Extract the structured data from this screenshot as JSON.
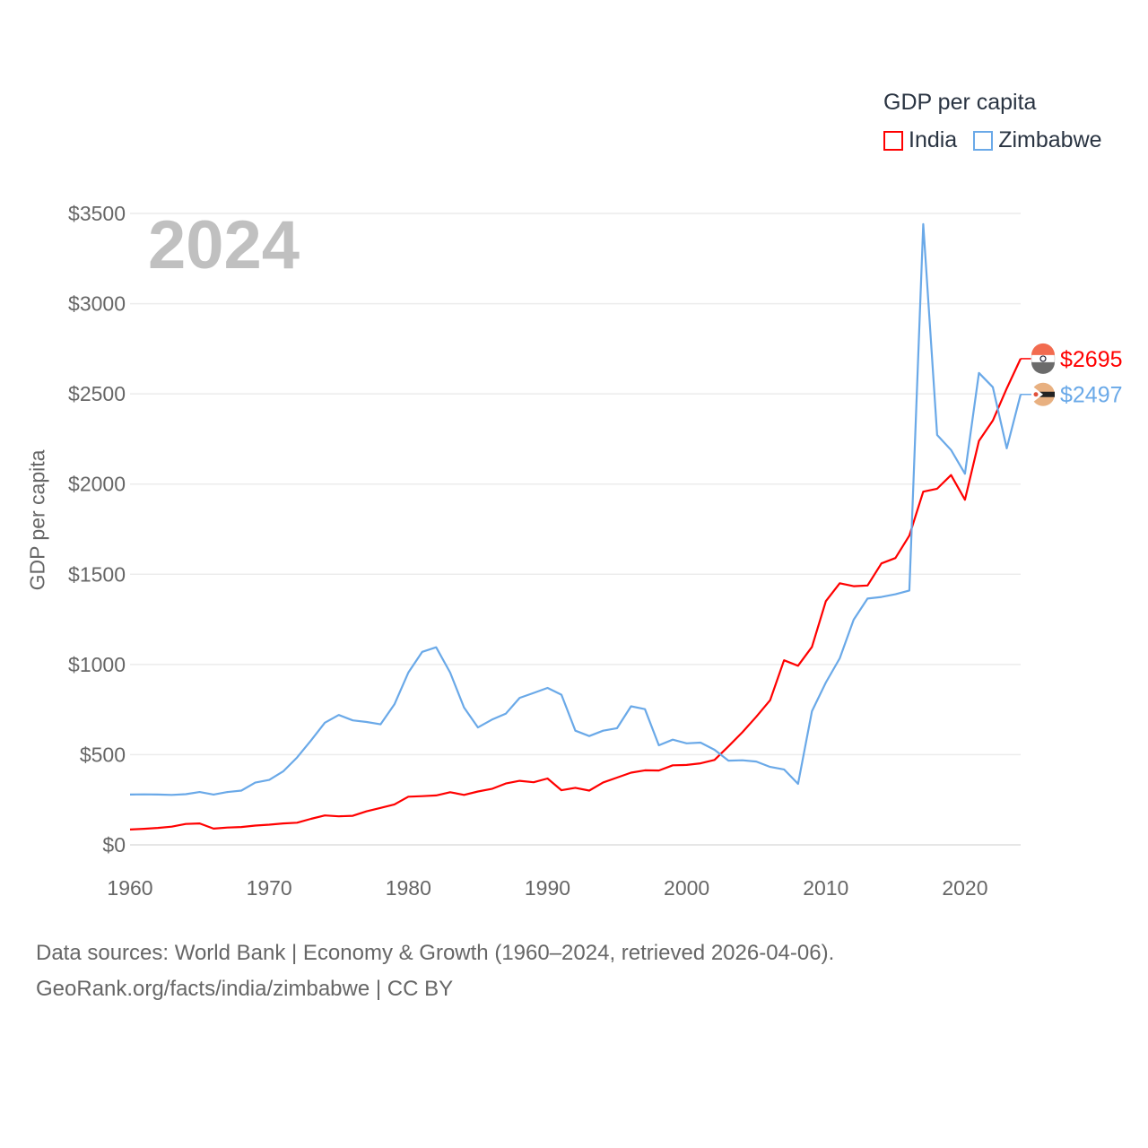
{
  "chart_data": {
    "type": "line",
    "title": "",
    "year_label": "2024",
    "ylabel": "GDP per capita",
    "xlabel": "",
    "xlim": [
      1960,
      2024
    ],
    "ylim": [
      0,
      3500
    ],
    "x_ticks": [
      "1960",
      "1970",
      "1980",
      "1990",
      "2000",
      "2010",
      "2020"
    ],
    "x_tick_values": [
      1960,
      1970,
      1980,
      1990,
      2000,
      2010,
      2020
    ],
    "y_ticks": [
      "$0",
      "$500",
      "$1000",
      "$1500",
      "$2000",
      "$2500",
      "$3000",
      "$3500"
    ],
    "y_tick_values": [
      0,
      500,
      1000,
      1500,
      2000,
      2500,
      3000,
      3500
    ],
    "grid": true,
    "legend": {
      "title": "GDP per capita",
      "placement": "top-right"
    },
    "x_start": 1960,
    "series": [
      {
        "name": "India",
        "color": "#ff0000",
        "end_label": "$2695",
        "flag": "india-flag",
        "values": [
          85,
          89,
          94,
          101,
          116,
          119,
          90,
          96,
          99,
          107,
          112,
          119,
          123,
          144,
          163,
          158,
          161,
          186,
          205,
          224,
          267,
          270,
          274,
          292,
          277,
          296,
          310,
          340,
          355,
          347,
          368,
          303,
          316,
          301,
          346,
          373,
          400,
          413,
          412,
          441,
          443,
          452,
          471,
          546,
          624,
          710,
          802,
          1023,
          993,
          1097,
          1351,
          1450,
          1434,
          1438,
          1560,
          1590,
          1714,
          1958,
          1974,
          2050,
          1913,
          2239,
          2352,
          2530,
          2695
        ]
      },
      {
        "name": "Zimbabwe",
        "color": "#6aa9e8",
        "end_label": "$2497",
        "flag": "zimbabwe-flag",
        "values": [
          279,
          280,
          279,
          277,
          281,
          293,
          279,
          293,
          301,
          345,
          360,
          407,
          484,
          578,
          677,
          720,
          690,
          681,
          668,
          779,
          955,
          1070,
          1095,
          955,
          761,
          651,
          694,
          727,
          815,
          842,
          870,
          832,
          633,
          603,
          633,
          647,
          768,
          752,
          552,
          583,
          563,
          567,
          527,
          467,
          469,
          462,
          432,
          418,
          338,
          741,
          900,
          1034,
          1248,
          1365,
          1374,
          1389,
          1410,
          3441,
          2272,
          2189,
          2057,
          2616,
          2537,
          2198,
          2497
        ]
      }
    ]
  },
  "footer": {
    "line1": "Data sources: World Bank | Economy & Growth (1960–2024, retrieved 2026-04-06).",
    "line2": "GeoRank.org/facts/india/zimbabwe | CC BY"
  }
}
